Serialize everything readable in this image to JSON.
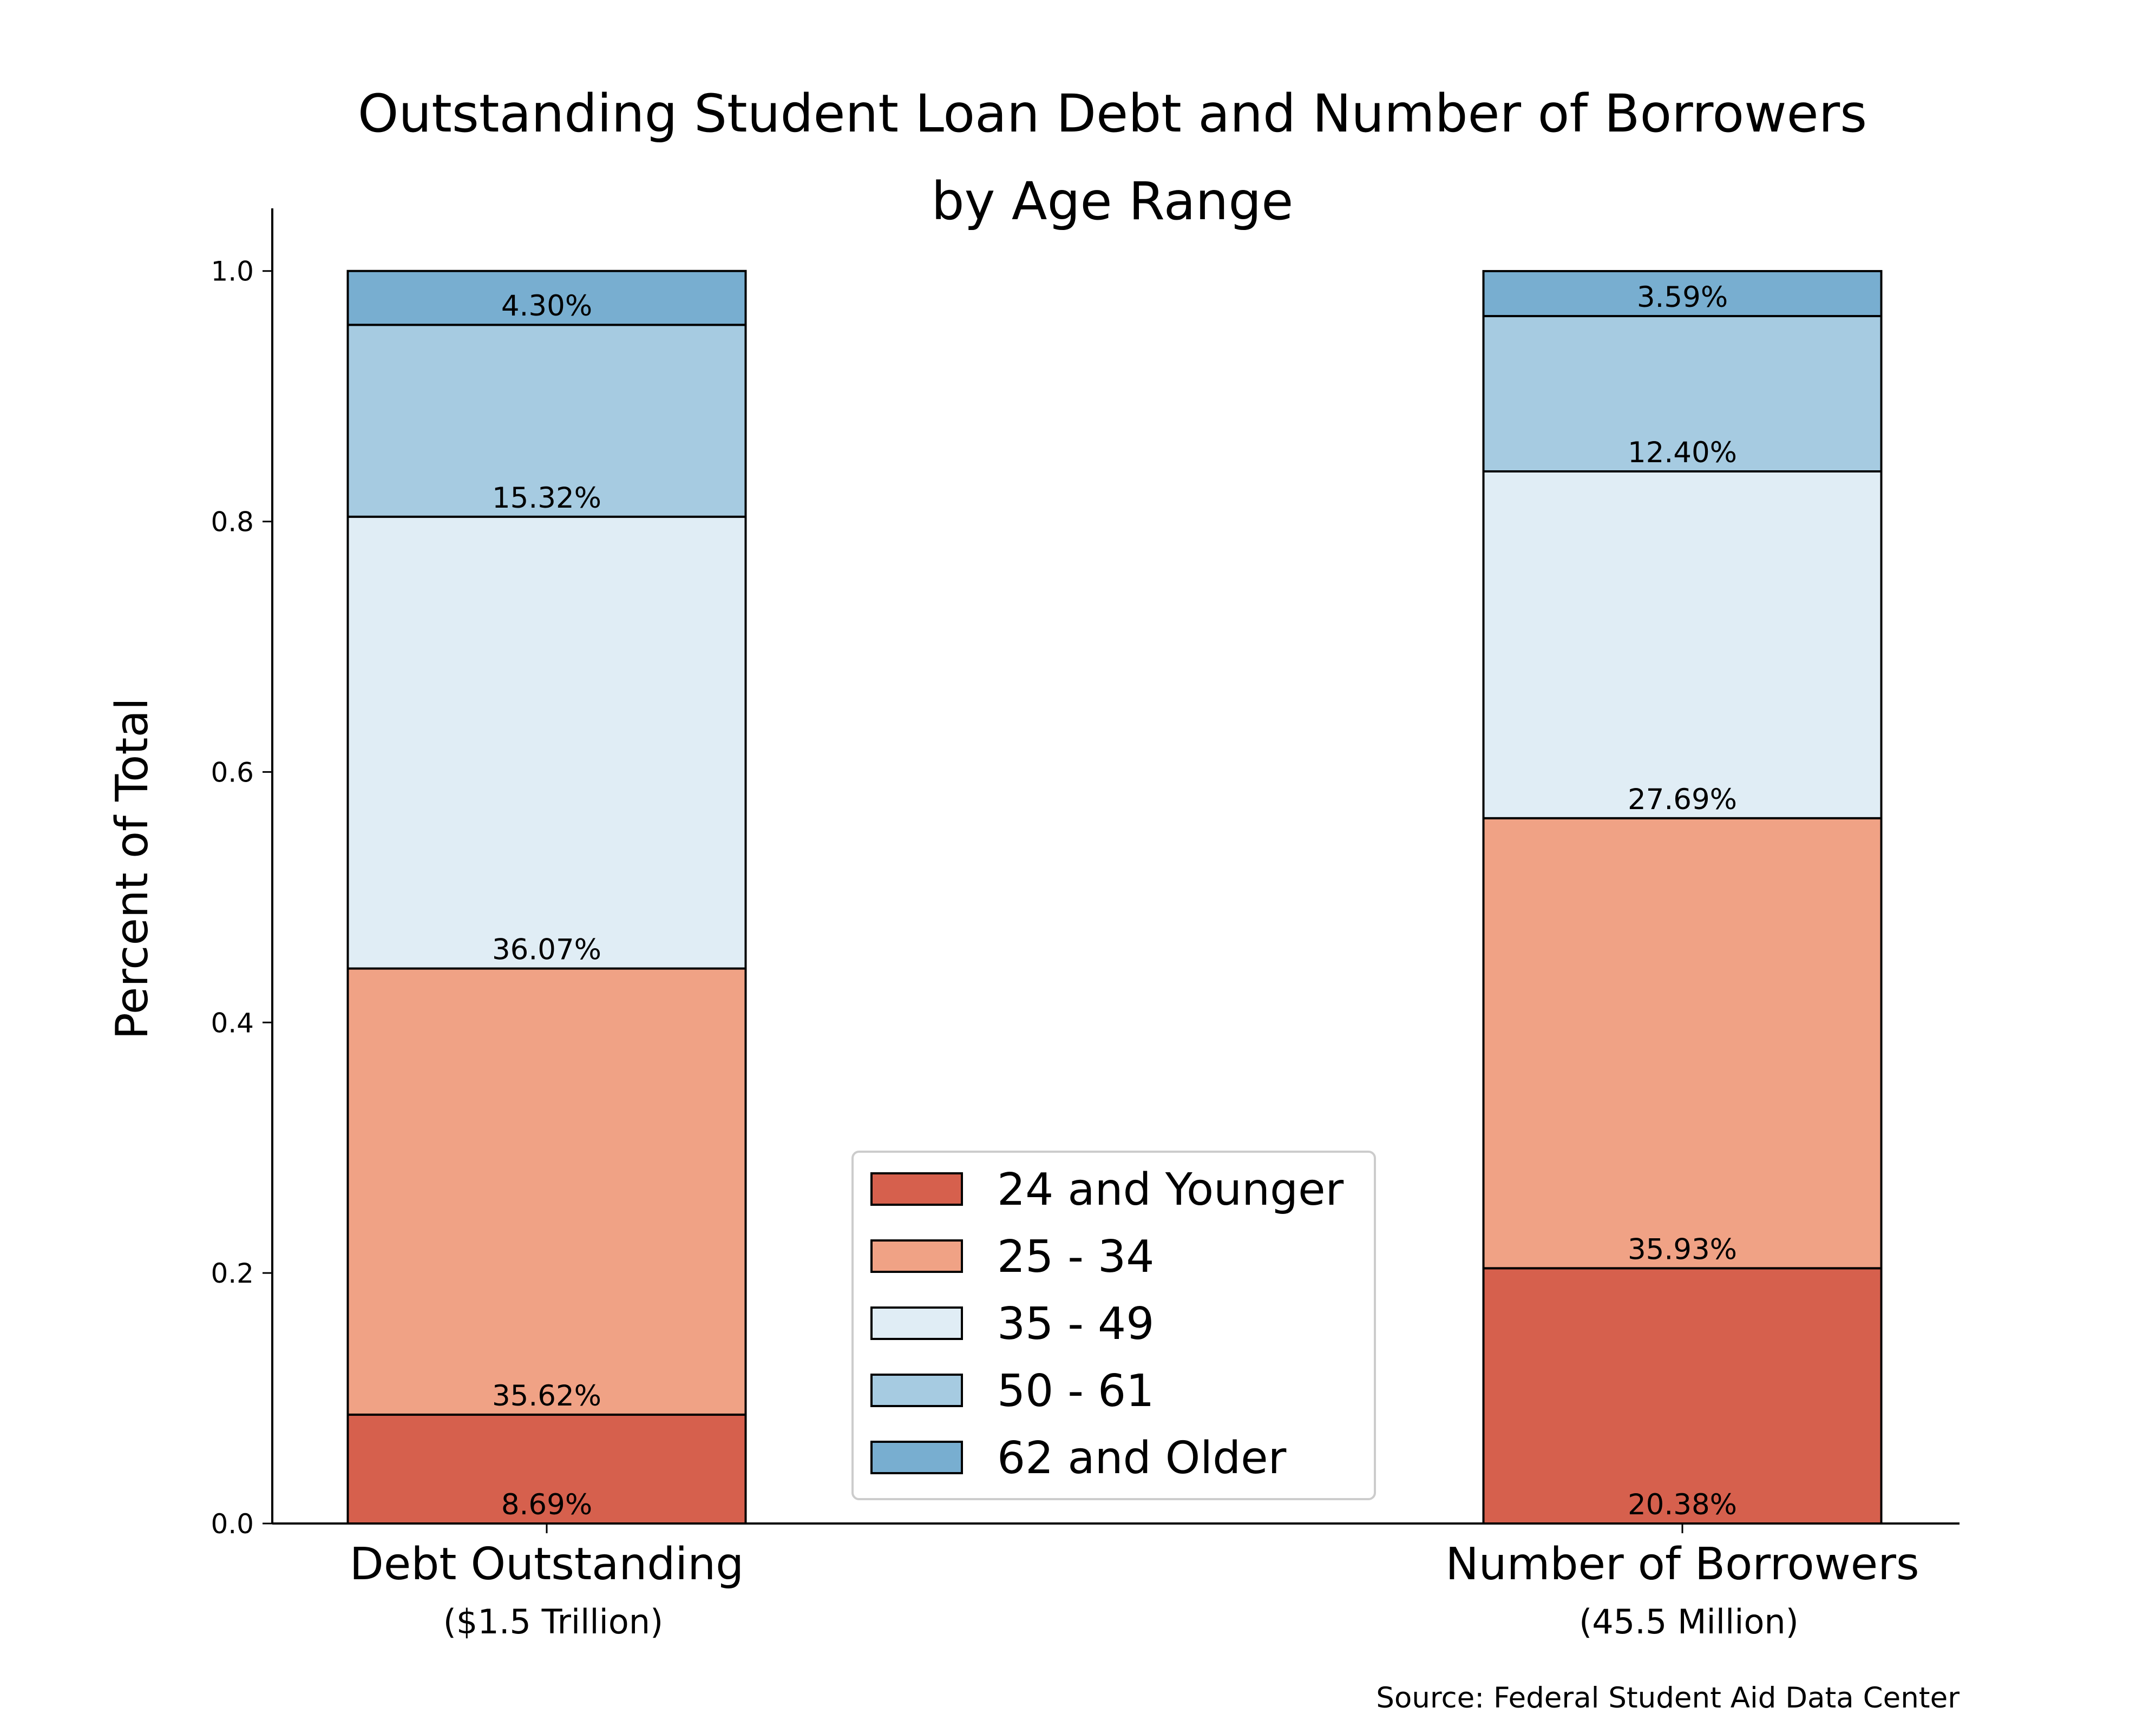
{
  "chart_data": {
    "type": "bar",
    "stacked": true,
    "title": "Outstanding Student Loan Debt and Number of Borrowers",
    "subtitle": "by Age Range",
    "ylabel": "Percent of Total",
    "ylim": [
      0.0,
      1.05
    ],
    "yticks": [
      "0.0",
      "0.2",
      "0.4",
      "0.6",
      "0.8",
      "1.0"
    ],
    "categories": [
      "Debt Outstanding",
      "Number of Borrowers"
    ],
    "category_subtitles": [
      "($1.5 Trillion)",
      "(45.5 Million)"
    ],
    "series": [
      {
        "name": "24 and Younger",
        "color": "#d6604d",
        "values": [
          0.0869,
          0.2038
        ],
        "labels": [
          "8.69%",
          "20.38%"
        ]
      },
      {
        "name": "25 - 34",
        "color": "#f0a285",
        "values": [
          0.3562,
          0.3593
        ],
        "labels": [
          "35.62%",
          "35.93%"
        ]
      },
      {
        "name": "35 - 49",
        "color": "#e0edf5",
        "values": [
          0.3607,
          0.2769
        ],
        "labels": [
          "36.07%",
          "27.69%"
        ]
      },
      {
        "name": "50 - 61",
        "color": "#a6cbe1",
        "values": [
          0.1532,
          0.124
        ],
        "labels": [
          "15.32%",
          "12.40%"
        ]
      },
      {
        "name": "62 and Older",
        "color": "#78aed0",
        "values": [
          0.043,
          0.0359
        ],
        "labels": [
          "4.30%",
          "3.59%"
        ]
      }
    ],
    "legend_position": "lower-center",
    "grid": false,
    "source": "Source: Federal Student Aid Data Center"
  }
}
